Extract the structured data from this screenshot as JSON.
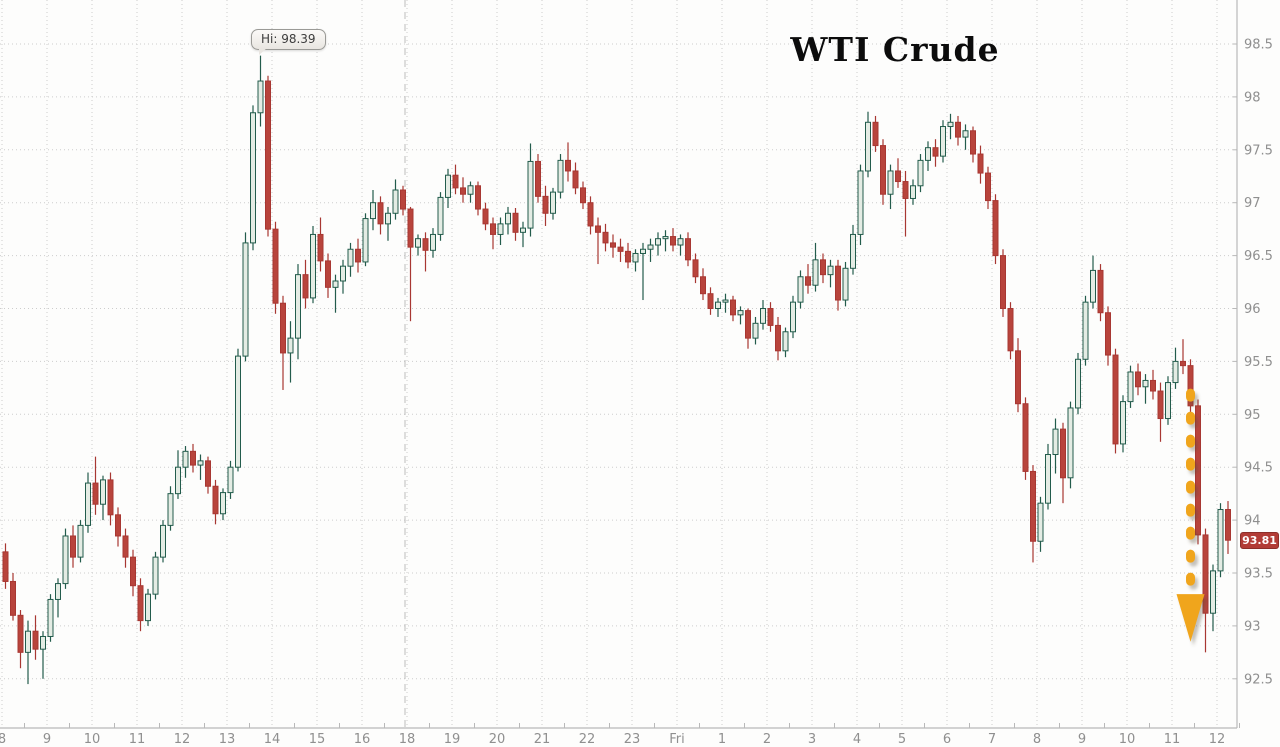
{
  "chart_data": {
    "type": "candlestick",
    "title": "WTI Crude",
    "high_annotation": {
      "label": "Hi: 98.39",
      "value": 98.39,
      "candle_index": 34
    },
    "last_price": {
      "label": "93.81",
      "value": 93.81
    },
    "y_axis": {
      "side": "right",
      "min": 92.5,
      "max": 98.5,
      "step": 0.5,
      "tick_labels": [
        "98.5",
        "98",
        "97.5",
        "97",
        "96.5",
        "96",
        "95.5",
        "95",
        "94.5",
        "94",
        "93.5",
        "93",
        "92.5"
      ]
    },
    "x_axis": {
      "unit": "hour",
      "tick_labels": [
        "8",
        "9",
        "10",
        "11",
        "12",
        "13",
        "14",
        "15",
        "16",
        "18",
        "19",
        "20",
        "21",
        "22",
        "23",
        "Fri",
        "1",
        "2",
        "3",
        "4",
        "5",
        "6",
        "7",
        "8",
        "9",
        "10",
        "11",
        "12"
      ],
      "session_break_after_label": "16"
    },
    "arrow_annotation": {
      "shape": "dashed-down-arrow",
      "candle_index": 158,
      "from_price": 95.2,
      "shaft_to_price": 93.3,
      "tip_price": 92.85
    },
    "colors": {
      "background": "#fdfdfc",
      "grid": "#cdcdcd",
      "session_break": "#bdbdbd",
      "axis": "#b9b9b9",
      "label": "#8f8f8f",
      "up_fill": "#e4ece4",
      "up_stroke": "#235c4c",
      "down_fill": "#b8443c",
      "down_stroke": "#a83732",
      "arrow": "#f0a51c",
      "last_price_bg": "#b23c36",
      "title": "#0c0c0c"
    },
    "candles": [
      [
        93.7,
        93.78,
        93.35,
        93.42
      ],
      [
        93.42,
        93.5,
        93.05,
        93.1
      ],
      [
        93.1,
        93.15,
        92.6,
        92.75
      ],
      [
        92.75,
        93.05,
        92.45,
        92.95
      ],
      [
        92.95,
        93.1,
        92.68,
        92.78
      ],
      [
        92.78,
        92.95,
        92.5,
        92.9
      ],
      [
        92.9,
        93.3,
        92.85,
        93.25
      ],
      [
        93.25,
        93.45,
        93.08,
        93.4
      ],
      [
        93.4,
        93.92,
        93.35,
        93.85
      ],
      [
        93.85,
        93.95,
        93.55,
        93.65
      ],
      [
        93.65,
        94.0,
        93.6,
        93.95
      ],
      [
        93.95,
        94.45,
        93.88,
        94.35
      ],
      [
        94.35,
        94.6,
        94.05,
        94.15
      ],
      [
        94.15,
        94.42,
        94.0,
        94.38
      ],
      [
        94.38,
        94.45,
        93.95,
        94.05
      ],
      [
        94.05,
        94.12,
        93.75,
        93.85
      ],
      [
        93.85,
        93.92,
        93.55,
        93.65
      ],
      [
        93.65,
        93.72,
        93.28,
        93.38
      ],
      [
        93.38,
        93.45,
        92.95,
        93.05
      ],
      [
        93.05,
        93.35,
        93.0,
        93.3
      ],
      [
        93.3,
        93.7,
        93.25,
        93.65
      ],
      [
        93.65,
        94.0,
        93.6,
        93.95
      ],
      [
        93.95,
        94.32,
        93.9,
        94.25
      ],
      [
        94.25,
        94.66,
        94.2,
        94.5
      ],
      [
        94.5,
        94.7,
        94.4,
        94.65
      ],
      [
        94.65,
        94.72,
        94.45,
        94.52
      ],
      [
        94.52,
        94.62,
        94.38,
        94.56
      ],
      [
        94.56,
        94.6,
        94.25,
        94.32
      ],
      [
        94.32,
        94.38,
        93.96,
        94.06
      ],
      [
        94.06,
        94.3,
        94.0,
        94.26
      ],
      [
        94.26,
        94.56,
        94.2,
        94.5
      ],
      [
        94.5,
        95.62,
        94.46,
        95.55
      ],
      [
        95.55,
        96.72,
        95.5,
        96.62
      ],
      [
        96.62,
        97.92,
        96.55,
        97.85
      ],
      [
        97.85,
        98.39,
        97.72,
        98.15
      ],
      [
        98.15,
        98.2,
        96.68,
        96.75
      ],
      [
        96.75,
        96.82,
        95.95,
        96.05
      ],
      [
        96.05,
        96.12,
        95.23,
        95.58
      ],
      [
        95.58,
        95.88,
        95.3,
        95.72
      ],
      [
        95.72,
        96.42,
        95.52,
        96.32
      ],
      [
        96.32,
        96.46,
        96.0,
        96.1
      ],
      [
        96.1,
        96.78,
        96.05,
        96.7
      ],
      [
        96.7,
        96.86,
        96.35,
        96.45
      ],
      [
        96.45,
        96.52,
        96.1,
        96.2
      ],
      [
        96.2,
        96.32,
        95.96,
        96.26
      ],
      [
        96.26,
        96.46,
        96.14,
        96.4
      ],
      [
        96.4,
        96.62,
        96.3,
        96.56
      ],
      [
        96.56,
        96.66,
        96.34,
        96.44
      ],
      [
        96.44,
        96.9,
        96.4,
        96.85
      ],
      [
        96.85,
        97.12,
        96.74,
        97.0
      ],
      [
        97.0,
        97.06,
        96.7,
        96.8
      ],
      [
        96.8,
        96.96,
        96.64,
        96.9
      ],
      [
        96.9,
        97.22,
        96.84,
        97.12
      ],
      [
        97.12,
        97.16,
        96.88,
        96.94
      ],
      [
        96.94,
        96.96,
        95.88,
        96.58
      ],
      [
        96.58,
        96.7,
        96.5,
        96.66
      ],
      [
        96.66,
        96.72,
        96.35,
        96.55
      ],
      [
        96.55,
        96.76,
        96.48,
        96.7
      ],
      [
        96.7,
        97.1,
        96.64,
        97.05
      ],
      [
        97.05,
        97.32,
        96.95,
        97.26
      ],
      [
        97.26,
        97.36,
        97.08,
        97.14
      ],
      [
        97.14,
        97.24,
        97.0,
        97.08
      ],
      [
        97.08,
        97.2,
        97.0,
        97.16
      ],
      [
        97.16,
        97.2,
        96.88,
        96.94
      ],
      [
        96.94,
        97.0,
        96.74,
        96.8
      ],
      [
        96.8,
        96.86,
        96.56,
        96.7
      ],
      [
        96.7,
        96.86,
        96.6,
        96.8
      ],
      [
        96.8,
        96.96,
        96.7,
        96.9
      ],
      [
        96.9,
        96.95,
        96.64,
        96.72
      ],
      [
        96.72,
        96.82,
        96.58,
        96.76
      ],
      [
        96.76,
        97.56,
        96.68,
        97.39
      ],
      [
        97.39,
        97.46,
        97.0,
        97.06
      ],
      [
        97.06,
        97.16,
        96.78,
        96.9
      ],
      [
        96.9,
        97.14,
        96.84,
        97.1
      ],
      [
        97.1,
        97.46,
        97.04,
        97.4
      ],
      [
        97.4,
        97.57,
        97.2,
        97.3
      ],
      [
        97.3,
        97.38,
        97.08,
        97.14
      ],
      [
        97.14,
        97.2,
        96.94,
        97.0
      ],
      [
        97.0,
        97.06,
        96.7,
        96.78
      ],
      [
        96.78,
        96.86,
        96.42,
        96.72
      ],
      [
        96.72,
        96.8,
        96.54,
        96.62
      ],
      [
        96.62,
        96.7,
        96.48,
        96.58
      ],
      [
        96.58,
        96.66,
        96.44,
        96.54
      ],
      [
        96.54,
        96.62,
        96.38,
        96.44
      ],
      [
        96.44,
        96.56,
        96.35,
        96.52
      ],
      [
        96.52,
        96.62,
        96.08,
        96.56
      ],
      [
        96.56,
        96.66,
        96.44,
        96.6
      ],
      [
        96.6,
        96.72,
        96.5,
        96.66
      ],
      [
        96.66,
        96.74,
        96.54,
        96.68
      ],
      [
        96.68,
        96.76,
        96.54,
        96.6
      ],
      [
        96.6,
        96.7,
        96.5,
        96.66
      ],
      [
        96.66,
        96.72,
        96.4,
        96.46
      ],
      [
        96.46,
        96.52,
        96.24,
        96.3
      ],
      [
        96.3,
        96.38,
        96.08,
        96.14
      ],
      [
        96.14,
        96.2,
        95.94,
        96.0
      ],
      [
        96.0,
        96.1,
        95.92,
        96.06
      ],
      [
        96.06,
        96.14,
        95.96,
        96.08
      ],
      [
        96.08,
        96.12,
        95.88,
        95.94
      ],
      [
        95.94,
        96.02,
        95.85,
        95.98
      ],
      [
        95.98,
        96.0,
        95.62,
        95.72
      ],
      [
        95.72,
        95.92,
        95.66,
        95.86
      ],
      [
        95.86,
        96.08,
        95.8,
        96.0
      ],
      [
        96.0,
        96.06,
        95.78,
        95.84
      ],
      [
        95.84,
        95.92,
        95.51,
        95.6
      ],
      [
        95.6,
        95.82,
        95.54,
        95.78
      ],
      [
        95.78,
        96.12,
        95.72,
        96.06
      ],
      [
        96.06,
        96.36,
        96.0,
        96.3
      ],
      [
        96.3,
        96.42,
        96.14,
        96.22
      ],
      [
        96.22,
        96.62,
        96.16,
        96.46
      ],
      [
        96.46,
        96.52,
        96.24,
        96.32
      ],
      [
        96.32,
        96.46,
        96.2,
        96.4
      ],
      [
        96.4,
        96.46,
        95.98,
        96.08
      ],
      [
        96.08,
        96.44,
        96.02,
        96.38
      ],
      [
        96.38,
        96.79,
        96.32,
        96.7
      ],
      [
        96.7,
        97.36,
        96.6,
        97.3
      ],
      [
        97.3,
        97.86,
        97.24,
        97.76
      ],
      [
        97.76,
        97.82,
        97.48,
        97.54
      ],
      [
        97.54,
        97.6,
        96.98,
        97.08
      ],
      [
        97.08,
        97.36,
        96.94,
        97.3
      ],
      [
        97.3,
        97.42,
        97.14,
        97.2
      ],
      [
        97.2,
        97.3,
        96.68,
        97.04
      ],
      [
        97.04,
        97.22,
        96.98,
        97.16
      ],
      [
        97.16,
        97.46,
        97.1,
        97.4
      ],
      [
        97.4,
        97.58,
        97.3,
        97.52
      ],
      [
        97.52,
        97.6,
        97.34,
        97.44
      ],
      [
        97.44,
        97.78,
        97.38,
        97.72
      ],
      [
        97.72,
        97.84,
        97.6,
        97.76
      ],
      [
        97.76,
        97.82,
        97.54,
        97.62
      ],
      [
        97.62,
        97.74,
        97.5,
        97.68
      ],
      [
        97.68,
        97.72,
        97.38,
        97.46
      ],
      [
        97.46,
        97.54,
        97.18,
        97.28
      ],
      [
        97.28,
        97.34,
        96.94,
        97.02
      ],
      [
        97.02,
        97.08,
        96.42,
        96.5
      ],
      [
        96.5,
        96.56,
        95.92,
        96.0
      ],
      [
        96.0,
        96.06,
        95.52,
        95.6
      ],
      [
        95.6,
        95.72,
        95.02,
        95.1
      ],
      [
        95.1,
        95.16,
        94.38,
        94.46
      ],
      [
        94.46,
        94.52,
        93.6,
        93.8
      ],
      [
        93.8,
        94.22,
        93.7,
        94.16
      ],
      [
        94.16,
        94.72,
        94.1,
        94.62
      ],
      [
        94.62,
        94.96,
        94.44,
        94.86
      ],
      [
        94.86,
        94.92,
        94.16,
        94.4
      ],
      [
        94.4,
        95.12,
        94.3,
        95.06
      ],
      [
        95.06,
        95.58,
        95.0,
        95.52
      ],
      [
        95.52,
        96.12,
        95.46,
        96.06
      ],
      [
        96.06,
        96.5,
        96.0,
        96.36
      ],
      [
        96.36,
        96.42,
        95.88,
        95.96
      ],
      [
        95.96,
        96.02,
        95.46,
        95.56
      ],
      [
        95.56,
        95.62,
        94.63,
        94.72
      ],
      [
        94.72,
        95.18,
        94.64,
        95.12
      ],
      [
        95.12,
        95.46,
        95.06,
        95.4
      ],
      [
        95.4,
        95.48,
        95.18,
        95.26
      ],
      [
        95.26,
        95.38,
        95.1,
        95.32
      ],
      [
        95.32,
        95.42,
        95.14,
        95.22
      ],
      [
        95.22,
        95.3,
        94.74,
        94.96
      ],
      [
        94.96,
        95.36,
        94.9,
        95.3
      ],
      [
        95.3,
        95.63,
        95.24,
        95.5
      ],
      [
        95.5,
        95.71,
        95.38,
        95.46
      ],
      [
        95.46,
        95.52,
        94.98,
        95.08
      ],
      [
        95.08,
        95.14,
        93.77,
        93.86
      ],
      [
        93.86,
        93.92,
        92.75,
        93.12
      ],
      [
        93.12,
        93.58,
        92.95,
        93.52
      ],
      [
        93.52,
        94.16,
        93.46,
        94.1
      ],
      [
        94.1,
        94.18,
        93.68,
        93.81
      ]
    ]
  }
}
